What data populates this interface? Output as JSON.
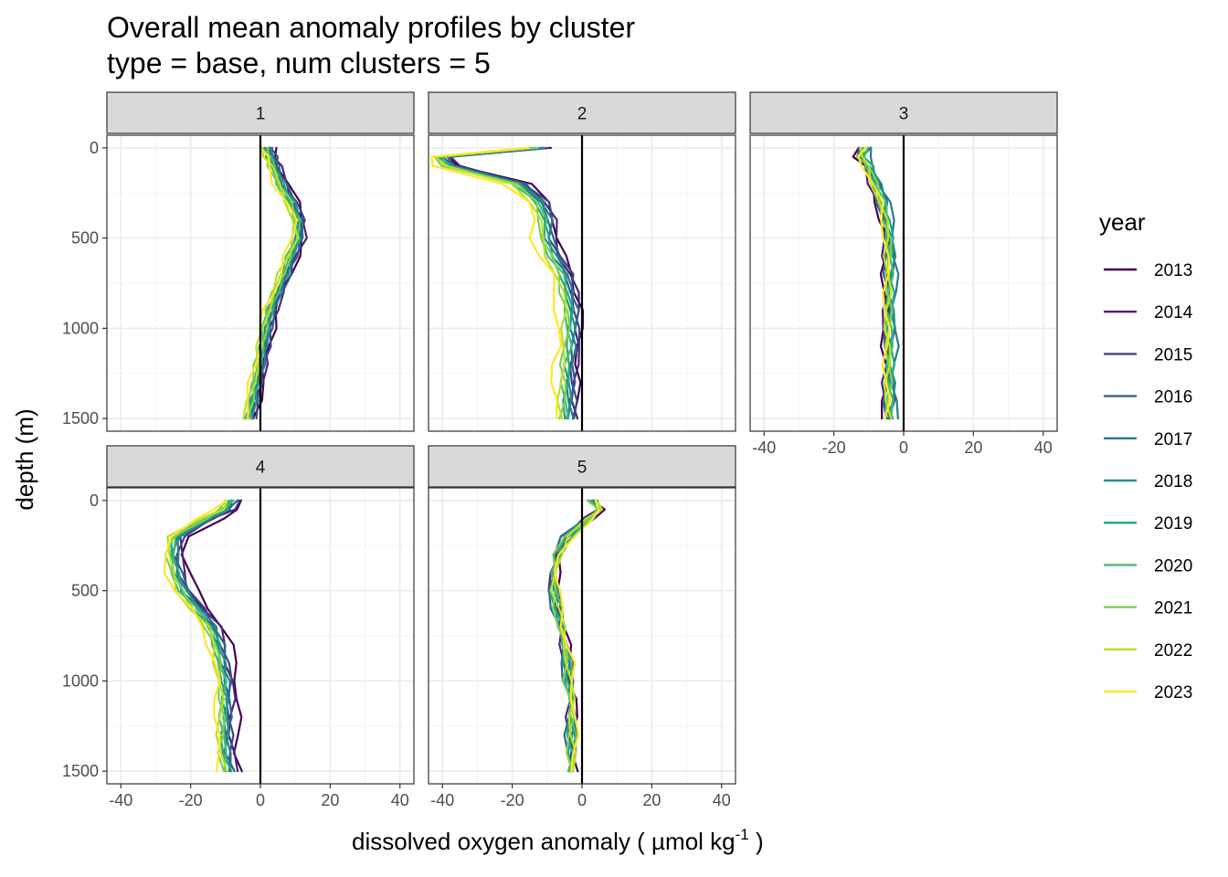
{
  "chart_data": {
    "type": "line",
    "title": "Overall mean anomaly profiles by cluster",
    "subtitle": "type = base, num clusters = 5",
    "xlabel": "dissolved oxygen anomaly ( µmol kg",
    "xlabel_sup": "-1",
    "xlabel_close": " )",
    "ylabel": "depth (m)",
    "xlim": [
      -44,
      44
    ],
    "ylim": [
      1570,
      -70
    ],
    "x_ticks": [
      -40,
      -20,
      0,
      20,
      40
    ],
    "x_tick_labels": [
      "-40",
      "-20",
      "0",
      "20",
      "40"
    ],
    "y_ticks": [
      0,
      500,
      1000,
      1500
    ],
    "y_tick_labels": [
      "0",
      "500",
      "1000",
      "1500"
    ],
    "legend_title": "year",
    "legend_position": "right",
    "years": [
      "2013",
      "2014",
      "2015",
      "2016",
      "2017",
      "2018",
      "2019",
      "2020",
      "2021",
      "2022",
      "2023"
    ],
    "colors": [
      "#440154",
      "#482576",
      "#414487",
      "#35608D",
      "#2A788E",
      "#21908C",
      "#22A884",
      "#43BF71",
      "#7AD151",
      "#BBDF27",
      "#FDE725"
    ],
    "depths": [
      0,
      50,
      100,
      200,
      300,
      400,
      500,
      600,
      700,
      800,
      900,
      1000,
      1100,
      1200,
      1300,
      1400,
      1500
    ],
    "panels": [
      {
        "strip": "1",
        "mean_profile": [
          2,
          3,
          4,
          6,
          9,
          11,
          11,
          9,
          7,
          5,
          3,
          2,
          1,
          0,
          -1,
          -2,
          -3
        ],
        "series_offsets": [
          1.5,
          1.2,
          0.9,
          0.6,
          0.3,
          0.0,
          -0.3,
          -0.6,
          -0.9,
          -1.2,
          -1.6
        ]
      },
      {
        "strip": "2",
        "mean_profile": [
          -12,
          -40,
          -38,
          -18,
          -12,
          -10,
          -10,
          -8,
          -5,
          -4,
          -3,
          -3,
          -3,
          -4,
          -4,
          -4,
          -4
        ],
        "series_offsets": [
          2.5,
          2.0,
          1.5,
          1.0,
          0.5,
          0.0,
          -0.5,
          -1.0,
          -1.5,
          -2.0,
          -4.0
        ]
      },
      {
        "strip": "3",
        "mean_profile": [
          -11,
          -12,
          -10,
          -8,
          -6,
          -5,
          -4,
          -4,
          -4,
          -4,
          -4,
          -4,
          -4,
          -4,
          -4,
          -4,
          -4
        ],
        "series_offsets": [
          -1.5,
          -1.2,
          0.5,
          -0.8,
          1.5,
          0.6,
          0.3,
          0.0,
          -0.3,
          -0.6,
          -1.0
        ]
      },
      {
        "strip": "4",
        "mean_profile": [
          -8,
          -10,
          -15,
          -24,
          -25,
          -24,
          -22,
          -18,
          -14,
          -12,
          -11,
          -10,
          -10,
          -10,
          -10,
          -10,
          -9
        ],
        "series_offsets": [
          3.5,
          1.8,
          1.2,
          0.8,
          0.4,
          0.0,
          -0.4,
          -0.8,
          -1.2,
          -1.6,
          -2.5
        ]
      },
      {
        "strip": "5",
        "mean_profile": [
          3,
          5,
          2,
          -4,
          -7,
          -8,
          -8,
          -7,
          -6,
          -5,
          -4,
          -4,
          -3,
          -3,
          -3,
          -3,
          -3
        ],
        "series_offsets": [
          0.8,
          -0.6,
          0.6,
          -1.0,
          0.4,
          0.0,
          -0.3,
          0.3,
          -0.4,
          0.2,
          0.9
        ]
      }
    ]
  }
}
